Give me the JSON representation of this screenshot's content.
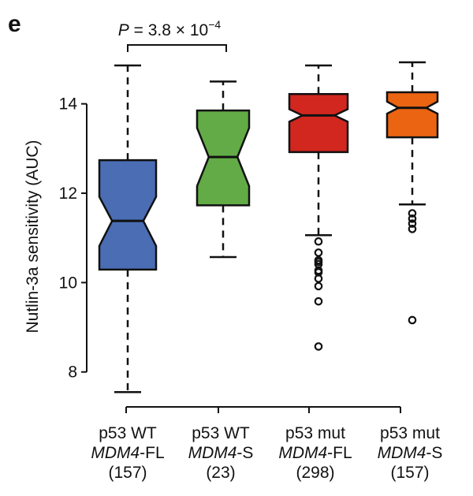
{
  "panel_label": "e",
  "chart_data": {
    "type": "boxplot",
    "notched": true,
    "ylabel": "Nutlin-3a sensitivity (AUC)",
    "ylim": [
      7.4,
      15.0
    ],
    "yticks": [
      8,
      10,
      12,
      14
    ],
    "grid": false,
    "annotation": {
      "text_p": "P",
      "text_eq": " = 3.8 × 10",
      "text_exp": "−4",
      "between": [
        0,
        1
      ]
    },
    "categories": [
      {
        "line1": "p53 WT",
        "line2_italic": "MDM4",
        "line2_rest": "-FL",
        "n": "(157)"
      },
      {
        "line1": "p53 WT",
        "line2_italic": "MDM4",
        "line2_rest": "-S",
        "n": "(23)"
      },
      {
        "line1": "p53 mut",
        "line2_italic": "MDM4",
        "line2_rest": "-FL",
        "n": "(298)"
      },
      {
        "line1": "p53 mut",
        "line2_italic": "MDM4",
        "line2_rest": "-S",
        "n": "(157)"
      }
    ],
    "boxes": [
      {
        "color": "#4a6db4",
        "whisker_low": 7.55,
        "q1": 10.29,
        "median": 11.38,
        "q3": 12.74,
        "whisker_high": 14.86,
        "notch_low": 10.82,
        "notch_high": 11.92,
        "outliers": []
      },
      {
        "color": "#62ab46",
        "whisker_low": 10.57,
        "q1": 11.73,
        "median": 12.81,
        "q3": 13.85,
        "whisker_high": 14.5,
        "notch_low": 12.16,
        "notch_high": 13.46,
        "outliers": []
      },
      {
        "color": "#d2271f",
        "whisker_low": 11.06,
        "q1": 12.92,
        "median": 13.74,
        "q3": 14.22,
        "whisker_high": 14.86,
        "notch_low": 13.6,
        "notch_high": 13.88,
        "outliers": [
          10.92,
          10.67,
          10.5,
          10.46,
          10.41,
          10.27,
          10.23,
          10.09,
          9.92,
          9.58,
          8.57
        ]
      },
      {
        "color": "#ea6412",
        "whisker_low": 11.75,
        "q1": 13.25,
        "median": 13.91,
        "q3": 14.26,
        "whisker_high": 14.93,
        "notch_low": 13.78,
        "notch_high": 14.05,
        "outliers": [
          11.55,
          11.43,
          11.32,
          11.2,
          9.16
        ]
      }
    ]
  }
}
